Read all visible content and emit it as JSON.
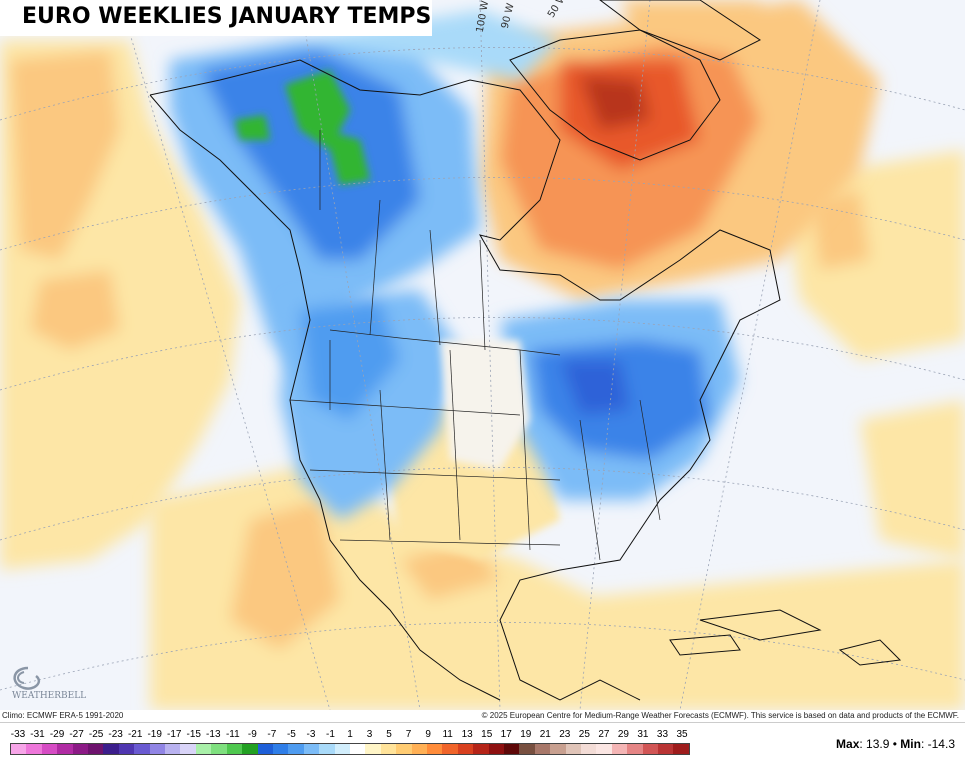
{
  "title": "EURO WEEKLIES JANUARY TEMPS",
  "meridian_labels": [
    "100 W",
    "90 W",
    "50 W"
  ],
  "map_features": {
    "anomaly_regions": [
      {
        "name": "alaska-western-canada",
        "category": "cold"
      },
      {
        "name": "northeast-great-lakes",
        "category": "cold"
      },
      {
        "name": "pacific-northwest-rockies",
        "category": "cold"
      },
      {
        "name": "northern-canada-greenland",
        "category": "warm"
      },
      {
        "name": "southwest-mexico",
        "category": "warm"
      },
      {
        "name": "gulf-caribbean",
        "category": "warm"
      },
      {
        "name": "north-pacific",
        "category": "warm"
      }
    ]
  },
  "logo_text": "WEATHERBELL",
  "climo_text": "Climo: ECMWF ERA-5 1991-2020",
  "copyright_text": "© 2025 European Centre for Medium-Range Weather Forecasts (ECMWF). This service is based on data and products of the ECMWF.",
  "legend": {
    "ticks": [
      "-33",
      "-31",
      "-29",
      "-27",
      "-25",
      "-23",
      "-21",
      "-19",
      "-17",
      "-15",
      "-13",
      "-11",
      "-9",
      "-7",
      "-5",
      "-3",
      "-1",
      "1",
      "3",
      "5",
      "7",
      "9",
      "11",
      "13",
      "15",
      "17",
      "19",
      "21",
      "23",
      "25",
      "27",
      "29",
      "31",
      "33",
      "35"
    ],
    "colors": [
      "#f7a5e8",
      "#ee77da",
      "#d64cc4",
      "#b02ba3",
      "#8c1a86",
      "#6e136e",
      "#3c1e8c",
      "#4f36b0",
      "#6a5ad1",
      "#9185e5",
      "#b9b2f0",
      "#d9d4f8",
      "#a9f0a9",
      "#7fe07f",
      "#4fc84f",
      "#22a022",
      "#1e5fd8",
      "#2f7ee8",
      "#4f9cf0",
      "#7cbcf7",
      "#a9daf9",
      "#d2eefc",
      "#ffffff",
      "#fff5c7",
      "#ffe39a",
      "#ffcc73",
      "#ffb055",
      "#ff8c3a",
      "#f0642a",
      "#d8401f",
      "#b52418",
      "#8e1010",
      "#5e0808",
      "#785040",
      "#a8786a",
      "#c8a090",
      "#e0c4b8",
      "#f3dcd6",
      "#fbe6e3",
      "#f4b5b5",
      "#e58585",
      "#d15555",
      "#b93434",
      "#9e1c1c"
    ]
  },
  "stats": {
    "max_label": "Max",
    "max_value": ": 13.9",
    "separator": " • ",
    "min_label": "Min",
    "min_value": ": -14.3"
  }
}
